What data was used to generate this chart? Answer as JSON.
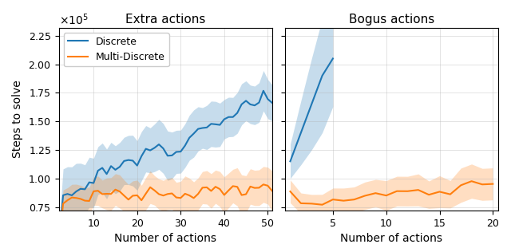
{
  "title_left": "Extra actions",
  "title_right": "Bogus actions",
  "xlabel": "Number of actions",
  "ylabel": "Steps to solve",
  "legend_labels": [
    "Discrete",
    "Multi-Discrete"
  ],
  "colors": [
    "#1f77b4",
    "#ff7f0e"
  ],
  "alpha_fill": 0.25,
  "left_xlim": [
    2,
    51
  ],
  "left_ylim": [
    72000,
    232000
  ],
  "left_xticks": [
    10,
    20,
    30,
    40,
    50
  ],
  "left_yticks": [
    75000,
    100000,
    125000,
    150000,
    175000,
    200000,
    225000
  ],
  "right_xlim": [
    0.5,
    20.5
  ],
  "right_xticks": [
    5,
    10,
    15,
    20
  ],
  "figsize": [
    6.4,
    3.16
  ],
  "dpi": 100
}
